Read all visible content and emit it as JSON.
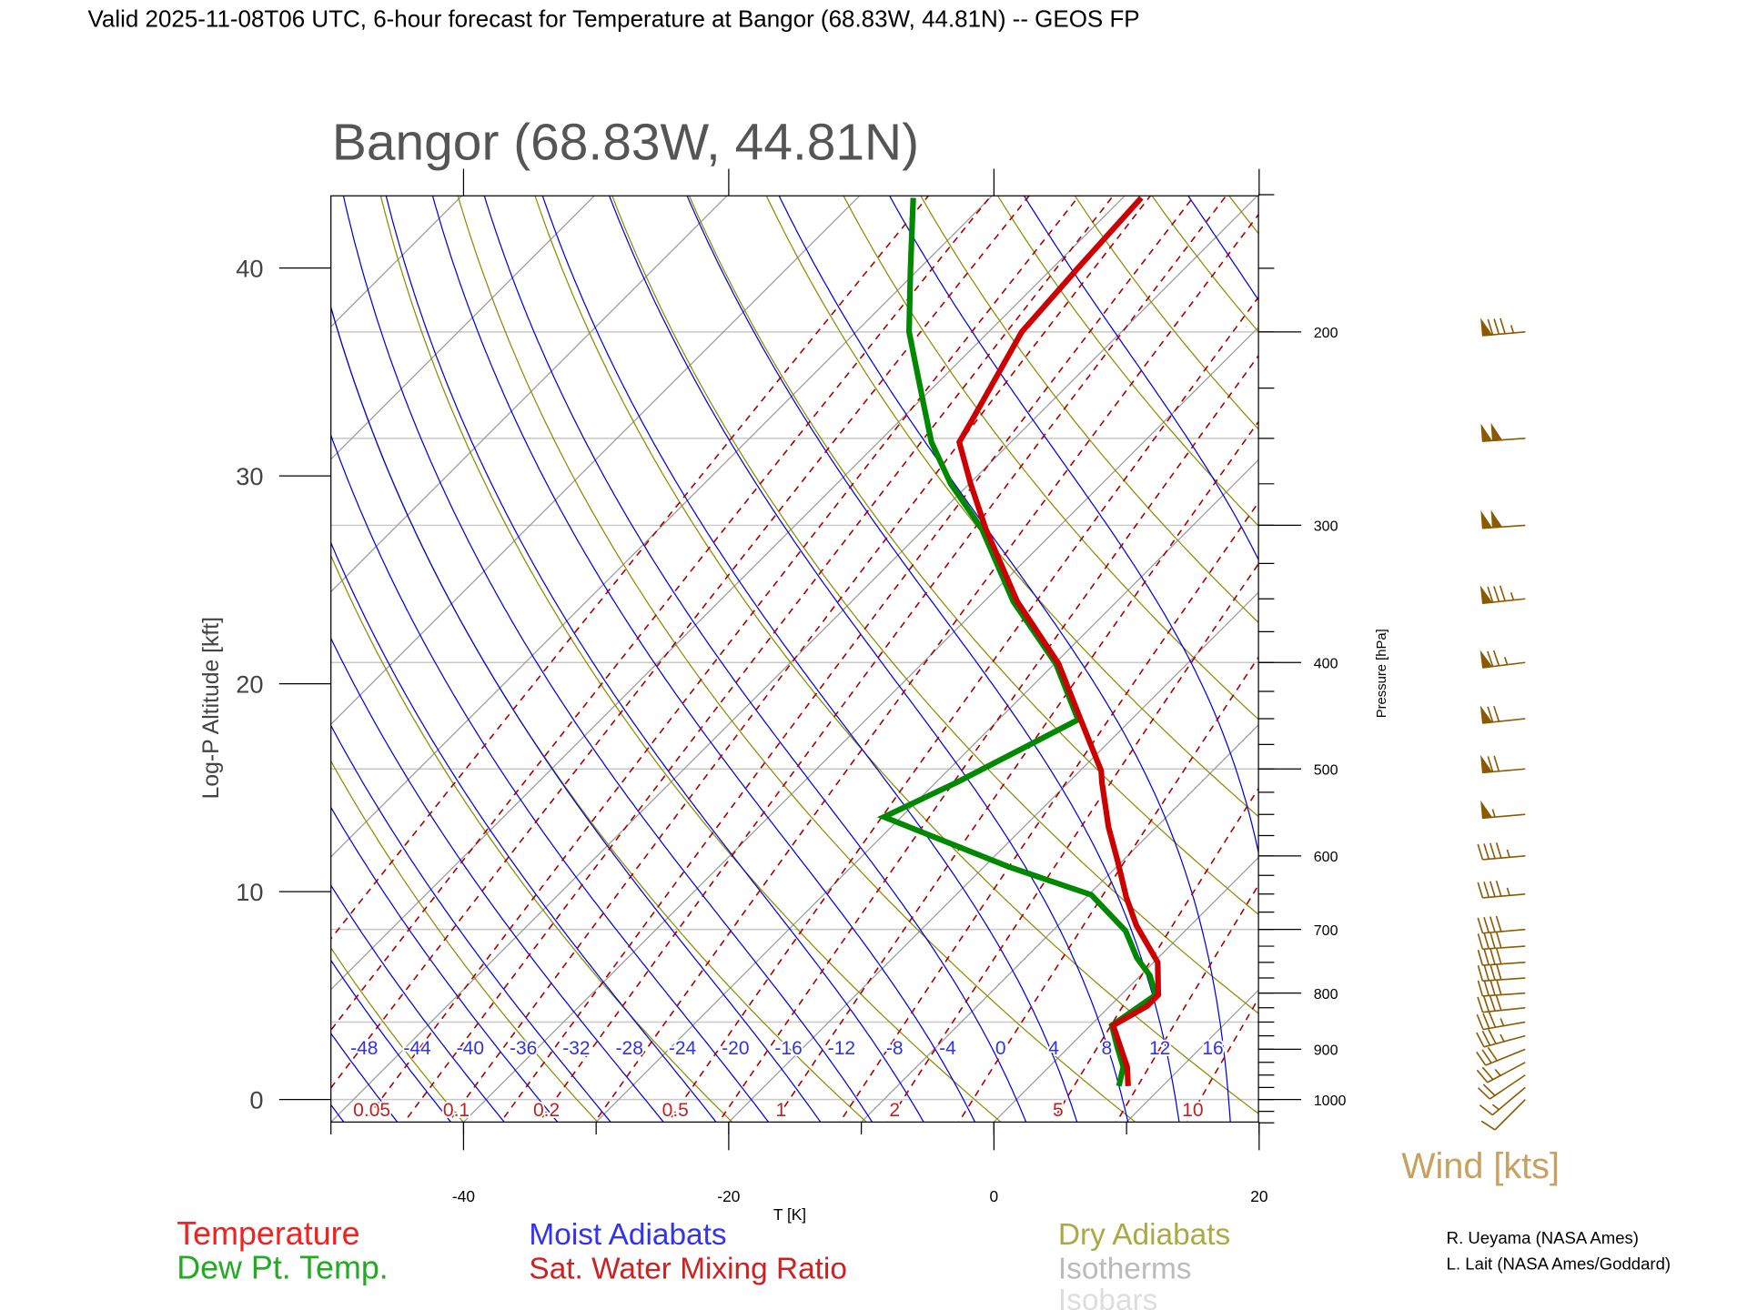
{
  "header": {
    "title": "Valid 2025-11-08T06 UTC, 6-hour forecast for Temperature at Bangor (68.83W, 44.81N) -- GEOS FP"
  },
  "chart_data": {
    "type": "line",
    "subtype": "skew-T log-P diagram",
    "title": "Bangor (68.83W, 44.81N)",
    "xlabel": "T [K]",
    "ylabel_left": "Log-P Altitude [kft]",
    "ylabel_right": "Pressure [hPa]",
    "x_ticks": [
      -40,
      -20,
      0,
      20
    ],
    "xlim": [
      -50,
      20
    ],
    "plim_hpa": [
      1048,
      150
    ],
    "altitude_ticks_kft": [
      0,
      10,
      20,
      30,
      40
    ],
    "pressure_ticks_hpa": [
      200,
      300,
      400,
      500,
      600,
      700,
      800,
      900,
      1000
    ],
    "isobars_hpa": [
      1000,
      850,
      700,
      500,
      400,
      300,
      250,
      200
    ],
    "moist_adiabat_labels": [
      "-48",
      "-44",
      "-40",
      "-36",
      "-32",
      "-28",
      "-24",
      "-20",
      "-16",
      "-12",
      "-8",
      "-4",
      "0",
      "4",
      "8",
      "12",
      "16"
    ],
    "mixing_ratio_labels": [
      "0.05",
      "0.1",
      "0.2",
      "0.5",
      "1",
      "2",
      "5",
      "10"
    ],
    "mixing_ratio_lines_gkg": [
      0.01,
      0.02,
      0.03,
      0.05,
      0.07,
      0.1,
      0.15,
      0.2,
      0.3,
      0.5,
      0.7,
      1,
      1.5,
      2,
      3,
      5,
      7,
      10,
      15,
      20,
      30
    ],
    "series": [
      {
        "name": "Temperature",
        "color": "#cc0000",
        "points": [
          {
            "p": 972,
            "T": 7.4
          },
          {
            "p": 934,
            "T": 5.9
          },
          {
            "p": 856,
            "T": 1.7
          },
          {
            "p": 822,
            "T": 2.8
          },
          {
            "p": 803,
            "T": 2.8
          },
          {
            "p": 750,
            "T": 0.3
          },
          {
            "p": 694,
            "T": -4.1
          },
          {
            "p": 654,
            "T": -7.0
          },
          {
            "p": 606,
            "T": -10.4
          },
          {
            "p": 565,
            "T": -13.6
          },
          {
            "p": 514,
            "T": -17.5
          },
          {
            "p": 502,
            "T": -18.4
          },
          {
            "p": 451,
            "T": -23.8
          },
          {
            "p": 401,
            "T": -29.7
          },
          {
            "p": 352,
            "T": -37.5
          },
          {
            "p": 302,
            "T": -45.4
          },
          {
            "p": 275,
            "T": -49.9
          },
          {
            "p": 252,
            "T": -53.9
          },
          {
            "p": 239,
            "T": -54.7
          },
          {
            "p": 200,
            "T": -57.5
          },
          {
            "p": 174,
            "T": -58.1
          },
          {
            "p": 151,
            "T": -58.6
          }
        ]
      },
      {
        "name": "Dew Pt. Temp.",
        "color": "#008800",
        "points": [
          {
            "p": 972,
            "T": 6.7
          },
          {
            "p": 934,
            "T": 5.6
          },
          {
            "p": 893,
            "T": 3.5
          },
          {
            "p": 856,
            "T": 1.6
          },
          {
            "p": 803,
            "T": 2.6
          },
          {
            "p": 771,
            "T": 0.7
          },
          {
            "p": 743,
            "T": -1.6
          },
          {
            "p": 702,
            "T": -4.5
          },
          {
            "p": 651,
            "T": -9.8
          },
          {
            "p": 614,
            "T": -18.1
          },
          {
            "p": 553,
            "T": -31.3
          },
          {
            "p": 514,
            "T": -28.4
          },
          {
            "p": 451,
            "T": -24.0
          },
          {
            "p": 401,
            "T": -29.9
          },
          {
            "p": 352,
            "T": -37.8
          },
          {
            "p": 302,
            "T": -45.7
          },
          {
            "p": 275,
            "T": -51.4
          },
          {
            "p": 252,
            "T": -56.0
          },
          {
            "p": 233,
            "T": -59.4
          },
          {
            "p": 200,
            "T": -66.0
          },
          {
            "p": 176,
            "T": -70.5
          },
          {
            "p": 151,
            "T": -75.8
          }
        ]
      }
    ],
    "wind": {
      "label": "Wind [kts]",
      "color": "#8b5a00",
      "barbs": [
        {
          "p": 200,
          "speed": 85,
          "dir": 265
        },
        {
          "p": 250,
          "speed": 100,
          "dir": 266
        },
        {
          "p": 300,
          "speed": 100,
          "dir": 266
        },
        {
          "p": 350,
          "speed": 85,
          "dir": 264
        },
        {
          "p": 400,
          "speed": 75,
          "dir": 263
        },
        {
          "p": 450,
          "speed": 70,
          "dir": 264
        },
        {
          "p": 500,
          "speed": 70,
          "dir": 265
        },
        {
          "p": 550,
          "speed": 55,
          "dir": 265
        },
        {
          "p": 600,
          "speed": 45,
          "dir": 265
        },
        {
          "p": 650,
          "speed": 45,
          "dir": 265
        },
        {
          "p": 700,
          "speed": 40,
          "dir": 265
        },
        {
          "p": 725,
          "speed": 40,
          "dir": 266
        },
        {
          "p": 750,
          "speed": 40,
          "dir": 266
        },
        {
          "p": 775,
          "speed": 40,
          "dir": 266
        },
        {
          "p": 800,
          "speed": 40,
          "dir": 266
        },
        {
          "p": 825,
          "speed": 40,
          "dir": 264
        },
        {
          "p": 850,
          "speed": 35,
          "dir": 260
        },
        {
          "p": 875,
          "speed": 35,
          "dir": 255
        },
        {
          "p": 900,
          "speed": 30,
          "dir": 248
        },
        {
          "p": 925,
          "speed": 25,
          "dir": 242
        },
        {
          "p": 950,
          "speed": 20,
          "dir": 236
        },
        {
          "p": 975,
          "speed": 15,
          "dir": 230
        },
        {
          "p": 1000,
          "speed": 10,
          "dir": 225
        }
      ]
    },
    "legend": [
      {
        "label": "Temperature",
        "color": "#ee2222"
      },
      {
        "label": "Dew Pt. Temp.",
        "color": "#22aa22"
      },
      {
        "label": "Moist Adiabats",
        "color": "#3333ee"
      },
      {
        "label": "Sat. Water Mixing Ratio",
        "color": "#cc2222"
      },
      {
        "label": "Dry Adiabats",
        "color": "#aaaa44"
      },
      {
        "label": "Isotherms",
        "color": "#bbbbbb"
      },
      {
        "label": "Isobars",
        "color": "#dddddd"
      }
    ]
  },
  "credits": [
    "R. Ueyama (NASA Ames)",
    "L. Lait (NASA Ames/Goddard)"
  ]
}
